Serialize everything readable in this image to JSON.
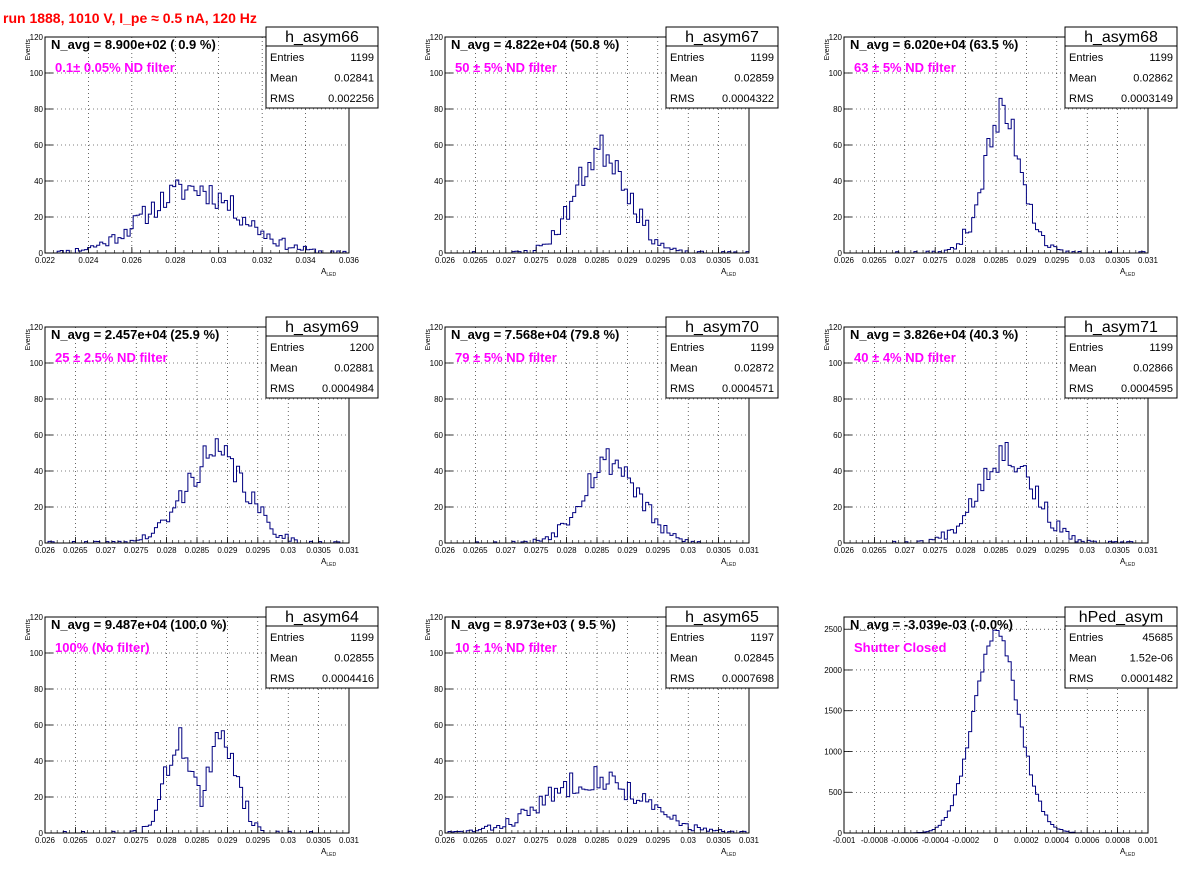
{
  "page": {
    "run_title": "run 1888,  1010 V, I_pe ≈ 0.5 nA, 120 Hz"
  },
  "colors": {
    "hist": "#000080",
    "label": "#ff00ff",
    "title": "#ff0000",
    "grid": "#000000"
  },
  "chart_data": [
    {
      "type": "bar",
      "name": "h_asym66",
      "navg_label": "N_avg = 8.900e+02 ( 0.9 %)",
      "filter_label": "0.1± 0.05% ND filter",
      "stats": [
        [
          "Entries",
          "1199"
        ],
        [
          "Mean",
          "0.02841"
        ],
        [
          "RMS",
          "0.002256"
        ]
      ],
      "xlabel": "A_LED",
      "ylabel": "Events",
      "xlim": [
        0.0212,
        0.036
      ],
      "ylim": [
        0,
        120
      ],
      "xticks": [
        "0.022",
        "0.024",
        "0.026",
        "0.028",
        "0.03",
        "0.032",
        "0.034",
        "0.036"
      ],
      "yticks": [
        "0",
        "20",
        "40",
        "60",
        "80",
        "100",
        "120"
      ],
      "mean": 0.02841,
      "rms": 0.002256,
      "peak": 36,
      "seed": 11
    },
    {
      "type": "bar",
      "name": "h_asym67",
      "navg_label": "N_avg = 4.822e+04 (50.8 %)",
      "filter_label": "50 ± 5% ND filter",
      "stats": [
        [
          "Entries",
          "1199"
        ],
        [
          "Mean",
          "0.02859"
        ],
        [
          "RMS",
          "0.0004322"
        ]
      ],
      "xlabel": "A_LED",
      "ylabel": "Events",
      "xlim": [
        0.026,
        0.031
      ],
      "ylim": [
        0,
        120
      ],
      "xticks": [
        "0.026",
        "0.0265",
        "0.027",
        "0.0275",
        "0.028",
        "0.0285",
        "0.029",
        "0.0295",
        "0.03",
        "0.0305",
        "0.031"
      ],
      "yticks": [
        "0",
        "20",
        "40",
        "60",
        "80",
        "100",
        "120"
      ],
      "mean": 0.02859,
      "rms": 0.0004322,
      "peak": 57,
      "seed": 23
    },
    {
      "type": "bar",
      "name": "h_asym68",
      "navg_label": "N_avg = 6.020e+04 (63.5 %)",
      "filter_label": "63 ± 5% ND filter",
      "stats": [
        [
          "Entries",
          "1199"
        ],
        [
          "Mean",
          "0.02862"
        ],
        [
          "RMS",
          "0.0003149"
        ]
      ],
      "xlabel": "A_LED",
      "ylabel": "Events",
      "xlim": [
        0.026,
        0.031
      ],
      "ylim": [
        0,
        120
      ],
      "xticks": [
        "0.026",
        "0.0265",
        "0.027",
        "0.0275",
        "0.028",
        "0.0285",
        "0.029",
        "0.0295",
        "0.03",
        "0.0305",
        "0.031"
      ],
      "yticks": [
        "0",
        "20",
        "40",
        "60",
        "80",
        "100",
        "120"
      ],
      "mean": 0.02862,
      "rms": 0.0003149,
      "peak": 76,
      "seed": 37
    },
    {
      "type": "bar",
      "name": "h_asym69",
      "navg_label": "N_avg = 2.457e+04 (25.9 %)",
      "filter_label": "25 ± 2.5% ND filter",
      "stats": [
        [
          "Entries",
          "1200"
        ],
        [
          "Mean",
          "0.02881"
        ],
        [
          "RMS",
          "0.0004984"
        ]
      ],
      "xlabel": "A_LED",
      "ylabel": "Events",
      "xlim": [
        0.026,
        0.031
      ],
      "ylim": [
        0,
        120
      ],
      "xticks": [
        "0.026",
        "0.0265",
        "0.027",
        "0.0275",
        "0.028",
        "0.0285",
        "0.029",
        "0.0295",
        "0.03",
        "0.0305",
        "0.031"
      ],
      "yticks": [
        "0",
        "20",
        "40",
        "60",
        "80",
        "100",
        "120"
      ],
      "mean": 0.02881,
      "rms": 0.0004984,
      "peak": 49,
      "seed": 41
    },
    {
      "type": "bar",
      "name": "h_asym70",
      "navg_label": "N_avg = 7.568e+04 (79.8 %)",
      "filter_label": "79 ± 5% ND filter",
      "stats": [
        [
          "Entries",
          "1199"
        ],
        [
          "Mean",
          "0.02872"
        ],
        [
          "RMS",
          "0.0004571"
        ]
      ],
      "xlabel": "A_LED",
      "ylabel": "Events",
      "xlim": [
        0.026,
        0.031
      ],
      "ylim": [
        0,
        120
      ],
      "xticks": [
        "0.026",
        "0.0265",
        "0.027",
        "0.0275",
        "0.028",
        "0.0285",
        "0.029",
        "0.0295",
        "0.03",
        "0.0305",
        "0.031"
      ],
      "yticks": [
        "0",
        "20",
        "40",
        "60",
        "80",
        "100",
        "120"
      ],
      "mean": 0.02872,
      "rms": 0.0004571,
      "peak": 46,
      "seed": 53
    },
    {
      "type": "bar",
      "name": "h_asym71",
      "navg_label": "N_avg = 3.826e+04 (40.3 %)",
      "filter_label": "40 ± 4% ND filter",
      "stats": [
        [
          "Entries",
          "1199"
        ],
        [
          "Mean",
          "0.02866"
        ],
        [
          "RMS",
          "0.0004595"
        ]
      ],
      "xlabel": "A_LED",
      "ylabel": "Events",
      "xlim": [
        0.026,
        0.031
      ],
      "ylim": [
        0,
        120
      ],
      "xticks": [
        "0.026",
        "0.0265",
        "0.027",
        "0.0275",
        "0.028",
        "0.0285",
        "0.029",
        "0.0295",
        "0.03",
        "0.0305",
        "0.031"
      ],
      "yticks": [
        "0",
        "20",
        "40",
        "60",
        "80",
        "100",
        "120"
      ],
      "mean": 0.02866,
      "rms": 0.0004595,
      "peak": 50,
      "seed": 67
    },
    {
      "type": "bar",
      "name": "h_asym64",
      "navg_label": "N_avg = 9.487e+04 (100.0 %)",
      "filter_label": "100% (No filter)",
      "stats": [
        [
          "Entries",
          "1199"
        ],
        [
          "Mean",
          "0.02855"
        ],
        [
          "RMS",
          "0.0004416"
        ]
      ],
      "xlabel": "A_LED",
      "ylabel": "Events",
      "xlim": [
        0.026,
        0.031
      ],
      "ylim": [
        0,
        120
      ],
      "xticks": [
        "0.026",
        "0.0265",
        "0.027",
        "0.0275",
        "0.028",
        "0.0285",
        "0.029",
        "0.0295",
        "0.03",
        "0.0305",
        "0.031"
      ],
      "yticks": [
        "0",
        "20",
        "40",
        "60",
        "80",
        "100",
        "120"
      ],
      "mean": 0.02855,
      "rms": 0.0004416,
      "peak": 50,
      "bimodal": [
        0.02822,
        0.02893
      ],
      "seed": 71
    },
    {
      "type": "bar",
      "name": "h_asym65",
      "navg_label": "N_avg = 8.973e+03 ( 9.5 %)",
      "filter_label": "10 ± 1% ND filter",
      "stats": [
        [
          "Entries",
          "1197"
        ],
        [
          "Mean",
          "0.02845"
        ],
        [
          "RMS",
          "0.0007698"
        ]
      ],
      "xlabel": "A_LED",
      "ylabel": "Events",
      "xlim": [
        0.026,
        0.031
      ],
      "ylim": [
        0,
        120
      ],
      "xticks": [
        "0.026",
        "0.0265",
        "0.027",
        "0.0275",
        "0.028",
        "0.0285",
        "0.029",
        "0.0295",
        "0.03",
        "0.0305",
        "0.031"
      ],
      "yticks": [
        "0",
        "20",
        "40",
        "60",
        "80",
        "100",
        "120"
      ],
      "mean": 0.02845,
      "rms": 0.0007698,
      "peak": 31,
      "seed": 83
    },
    {
      "type": "bar",
      "name": "hPed_asym",
      "navg_label": "N_avg = -3.039e-03 (-0.0%)",
      "filter_label": "Shutter Closed",
      "stats": [
        [
          "Entries",
          "45685"
        ],
        [
          "Mean",
          "1.52e-06"
        ],
        [
          "RMS",
          "0.0001482"
        ]
      ],
      "xlabel": "A_LED",
      "ylabel": "",
      "xlim": [
        -0.001,
        0.001
      ],
      "ylim": [
        0,
        2650
      ],
      "xticks": [
        "-0.001",
        "-0.0008",
        "-0.0006",
        "-0.0004",
        "-0.0002",
        "0",
        "0.0002",
        "0.0004",
        "0.0006",
        "0.0008",
        "0.001"
      ],
      "yticks": [
        "0",
        "500",
        "1000",
        "1500",
        "2000",
        "2500"
      ],
      "mean": 1.5e-06,
      "rms": 0.0001482,
      "peak": 2450,
      "seed": 97
    }
  ]
}
